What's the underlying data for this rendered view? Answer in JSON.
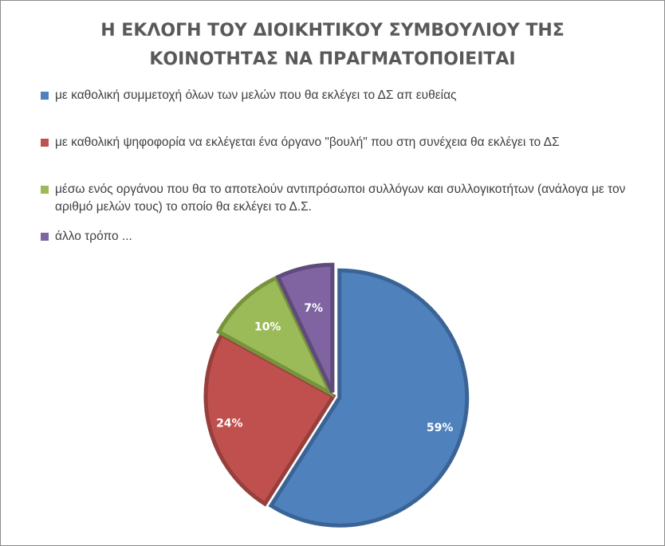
{
  "chart_data": {
    "type": "pie",
    "title": "Η ΕΚΛΟΓΗ ΤΟΥ ΔΙΟΙΚΗΤΙΚΟΥ ΣΥΜΒΟΥΛΙΟΥ ΤΗΣ ΚΟΙΝΟΤΗΤΑΣ ΝΑ ΠΡΑΓΜΑΤΟΠΟΙΕΙΤΑΙ",
    "title_lines": [
      "Η ΕΚΛΟΓΗ ΤΟΥ ΔΙΟΙΚΗΤΙΚΟΥ ΣΥΜΒΟΥΛΙΟΥ ΤΗΣ",
      "ΚΟΙΝΟΤΗΤΑΣ ΝΑ ΠΡΑΓΜΑΤΟΠΟΙΕΙΤΑΙ"
    ],
    "legend_position": "top",
    "slices": [
      {
        "label": "με καθολική συμμετοχή όλων των μελών που θα εκλέγει το ΔΣ απ ευθείας",
        "value": 59,
        "value_label": "59%",
        "color": "#4F81BD",
        "border_color": "#3A6496"
      },
      {
        "label": "με καθολική ψηφοφορία να εκλέγεται ένα όργανο \"βουλή\" που στη συνέχεια θα εκλέγει το ΔΣ",
        "value": 24,
        "value_label": "24%",
        "color": "#C0504D",
        "border_color": "#963F3D"
      },
      {
        "label": "μέσω ενός οργάνου που θα το αποτελούν αντιπρόσωποι συλλόγων και συλλογικοτήτων (ανάλογα με τον αριθμό μελών τους) το οποίο θα εκλέγει το Δ.Σ.",
        "value": 10,
        "value_label": "10%",
        "color": "#9BBB59",
        "border_color": "#77933C"
      },
      {
        "label": "άλλο τρόπο ...",
        "value": 7,
        "value_label": "7%",
        "color": "#8064A2",
        "border_color": "#5F4B7A"
      }
    ]
  }
}
